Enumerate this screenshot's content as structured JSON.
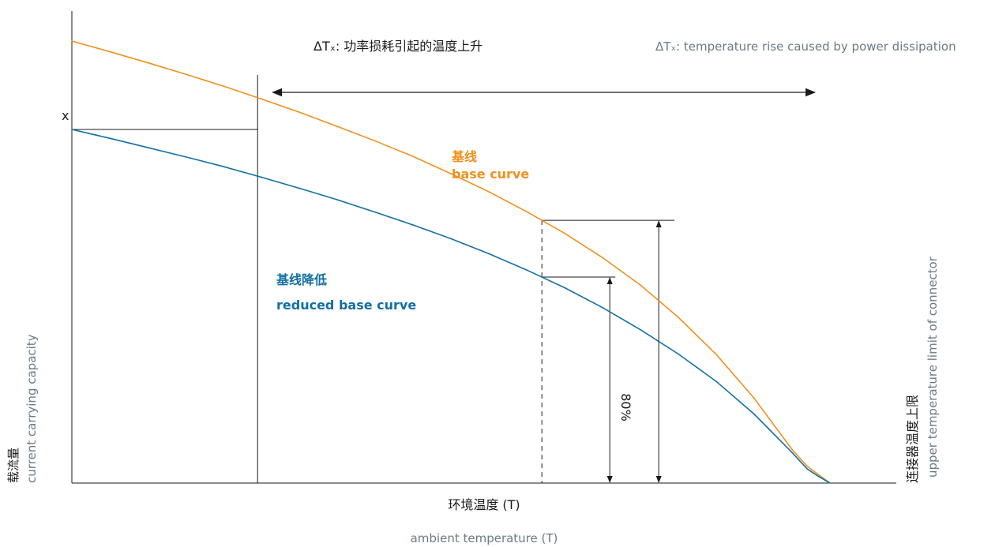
{
  "chart_data": {
    "type": "line",
    "title": "ΔTₓ: 功率损耗引起的温度上升",
    "title_en": "ΔTₓ: temperature rise caused by power dissipation",
    "xlabel": "环境温度 (T)",
    "xlabel_en": "ambient temperature (T)",
    "ylabel": "载流量",
    "ylabel_en": "current carrying capacity",
    "right_label": "连接器温度上限",
    "right_label_en": "upper temperature limit of connector",
    "y_tick_label": "x",
    "percent_label": "80%",
    "series": [
      {
        "name": "基线",
        "name_en": "base curve",
        "color": "#f0901e",
        "x": [
          0,
          5,
          10,
          15,
          20,
          25,
          30,
          35,
          40,
          45,
          50,
          55,
          60,
          65,
          70,
          75,
          80,
          85,
          90,
          95,
          97,
          98.5,
          100
        ],
        "y": [
          100,
          97.6,
          95.1,
          92.5,
          89.8,
          86.9,
          83.9,
          80.7,
          77.4,
          73.9,
          70.0,
          65.9,
          61.4,
          56.5,
          51.0,
          44.8,
          37.5,
          29.1,
          19.2,
          7.6,
          3.8,
          1.9,
          0
        ]
      },
      {
        "name": "基线降低",
        "name_en": "reduced base curve",
        "color": "#136fa5",
        "x": [
          0,
          5,
          10,
          15,
          20,
          25,
          30,
          35,
          40,
          45,
          50,
          55,
          60,
          65,
          70,
          75,
          80,
          85,
          90,
          95,
          97,
          98.5,
          100
        ],
        "y": [
          80,
          78.0,
          75.9,
          73.8,
          71.6,
          69.2,
          66.7,
          64.1,
          61.3,
          58.4,
          55.3,
          51.9,
          48.2,
          44.2,
          39.7,
          34.7,
          29.2,
          23.0,
          15.6,
          6.9,
          3.2,
          1.5,
          0
        ]
      }
    ],
    "annotations": {
      "x_marker": 24.5,
      "dashed_marker": 62,
      "delta_arrow": [
        26.5,
        98
      ]
    },
    "axis_ranges": {
      "x": [
        0,
        110
      ],
      "y": [
        0,
        100
      ]
    },
    "grid": false,
    "legend": "none (inline labels)"
  }
}
